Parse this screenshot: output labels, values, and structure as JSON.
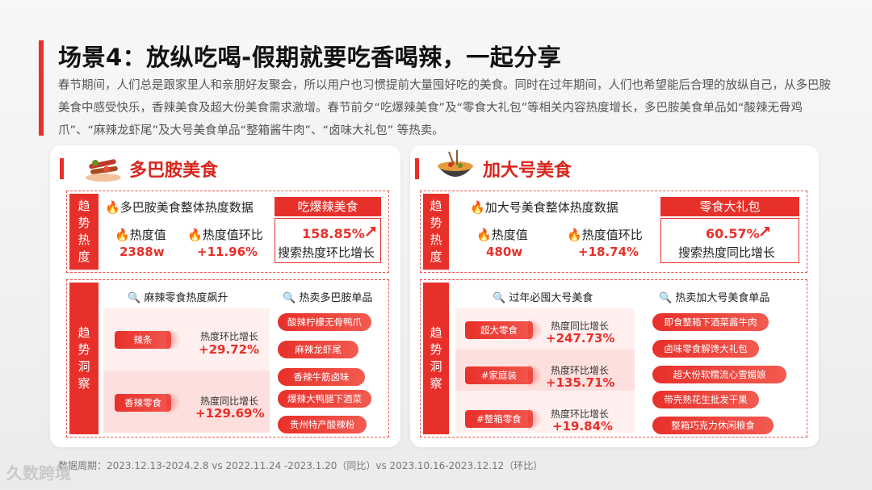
{
  "title": "场景4：放纵吃喝-假期就要吃香喝辣，一起分享",
  "intro": "春节期间，人们总是跟家里人和亲朋好友聚会，所以用户也习惯提前大量囤好吃的美食。同时在过年期间，人们也希望能后合理的放纵自己，从多巴胺美食中感受快乐，香辣美食及超大份美食需求激增。春节前夕“吃爆辣美食”及“零食大礼包”等相关内容热度增长，多巴胺美食单品如“酸辣无骨鸡爪”、“麻辣龙虾尾”及大号美食单品“整箱酱牛肉”、“卤味大礼包” 等热卖。",
  "left": {
    "panel_title": "多巴胺美食",
    "trend_label": "趋势热度",
    "insight_label": "趋势洞察",
    "overview_title": "多巴胺美食整体热度数据",
    "metric1_label": "热度值",
    "metric1_value": "2388w",
    "metric2_label": "热度值环比",
    "metric2_value": "+11.96%",
    "highlight_title": "吃爆辣美食",
    "highlight_pct": "158.85%",
    "highlight_desc": "搜索热度环比增长",
    "insight_title": "麻辣零食热度飙升",
    "hot_title": "热卖多巴胺单品",
    "rows": [
      {
        "tag": "辣条",
        "stat_label": "热度环比增长",
        "stat_value": "+29.72%"
      },
      {
        "tag": "香辣零食",
        "stat_label": "热度同比增长",
        "stat_value": "+129.69%"
      }
    ],
    "hot_items": [
      "酸辣柠檬无骨鸭爪",
      "麻辣龙虾尾",
      "香辣牛筋卤味",
      "爆辣大鸭腿下酒菜",
      "贵州特产酸辣粉"
    ]
  },
  "right": {
    "panel_title": "加大号美食",
    "trend_label": "趋势热度",
    "insight_label": "趋势洞察",
    "overview_title": "加大号美食整体热度数据",
    "metric1_label": "热度值",
    "metric1_value": "480w",
    "metric2_label": "热度值环比",
    "metric2_value": "+18.74%",
    "highlight_title": "零食大礼包",
    "highlight_pct": "60.57%",
    "highlight_desc": "搜索热度同比增长",
    "insight_title": "过年必囤大号美食",
    "hot_title": "热卖加大号美食单品",
    "rows": [
      {
        "tag": "超大零食",
        "stat_label": "热度同比增长",
        "stat_value": "+247.73%"
      },
      {
        "tag": "#家庭装",
        "stat_label": "热度环比增长",
        "stat_value": "+135.71%"
      },
      {
        "tag": "#整箱零食",
        "stat_label": "热度环比增长",
        "stat_value": "+19.84%"
      }
    ],
    "hot_items": [
      "即食整箱下酒菜酱牛肉",
      "卤味零食解馋大礼包",
      "超大份软糯流心雪媚娘",
      "带壳熟花生批发干果",
      "整箱巧克力休闲粮食"
    ]
  },
  "footer": "数据周期：2023.12.13-2024.2.8  vs 2022.11.24 -2023.1.20（同比）vs 2023.10.16-2023.12.12（环比）",
  "watermark": "久数跨境",
  "colors": {
    "accent": "#e8302a",
    "light": "#fff0ef"
  }
}
